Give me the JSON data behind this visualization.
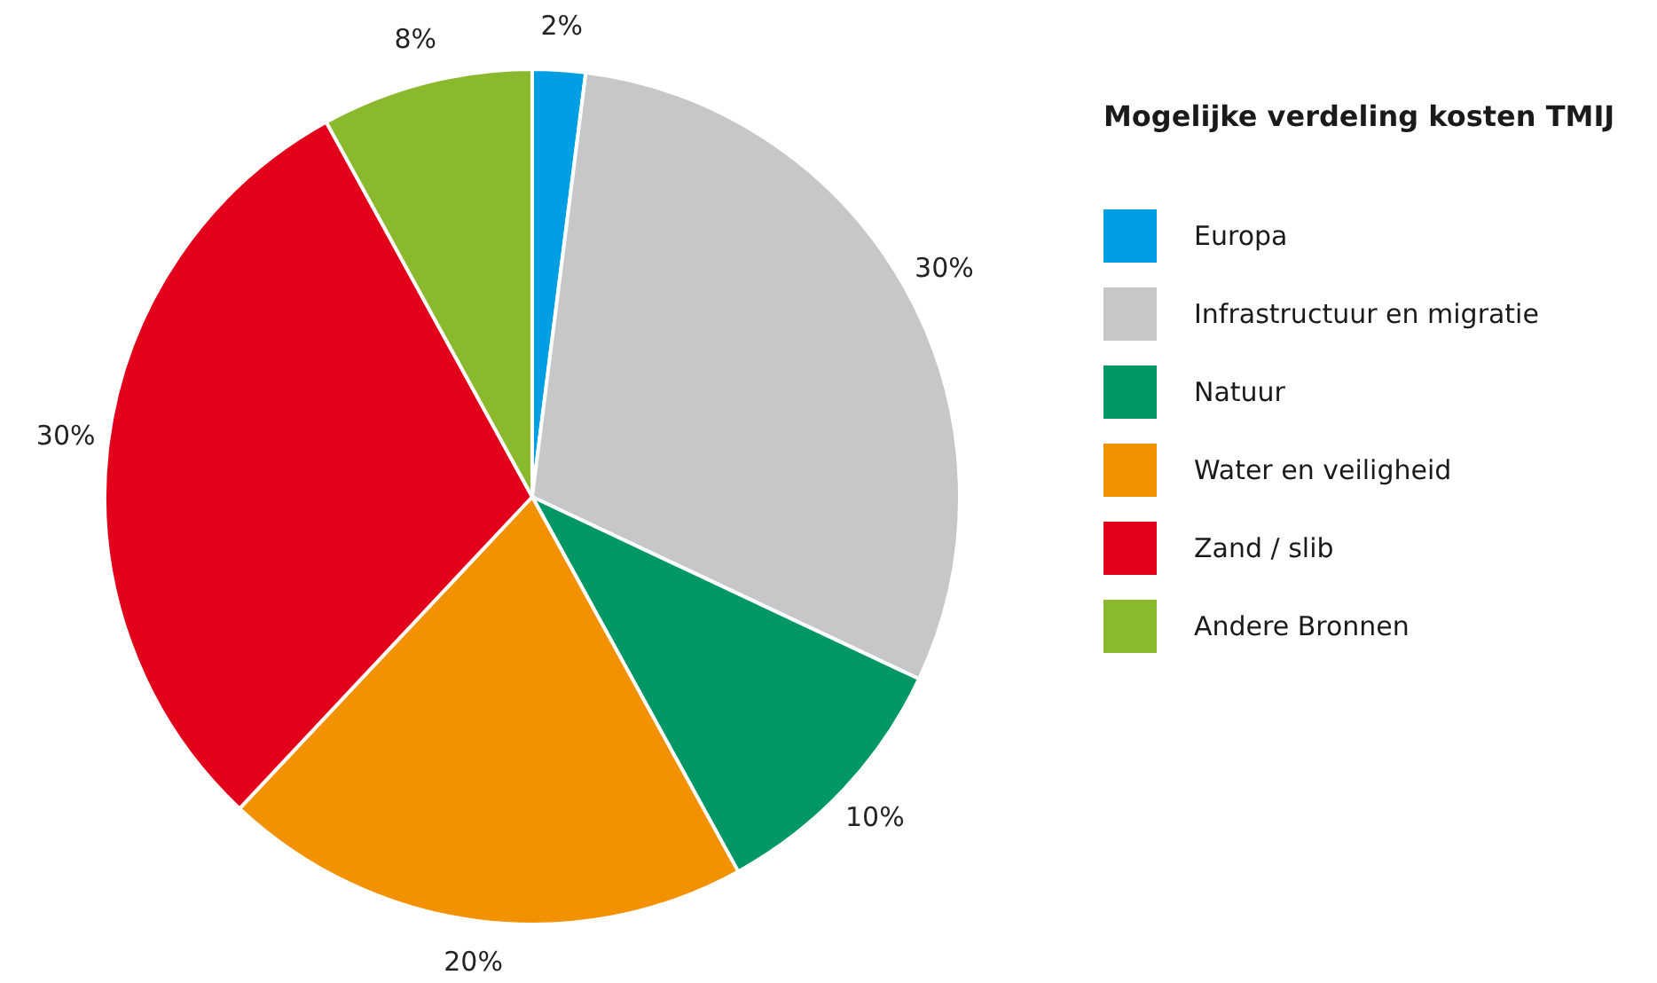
{
  "chart_data": {
    "type": "pie",
    "legend_title": "Mogelijke verdeling kosten TMIJ",
    "legend": "right",
    "categories": [
      "Europa",
      "Infrastructuur en migratie",
      "Natuur",
      "Water en veiligheid",
      "Zand / slib",
      "Andere Bronnen"
    ],
    "values": [
      2,
      30,
      10,
      20,
      30,
      8
    ],
    "colors": [
      "#009fe3",
      "#c6c7c8",
      "#009767",
      "#f39200",
      "#e2001a",
      "#8ab92d"
    ],
    "value_labels": [
      "2%",
      "30%",
      "10%",
      "20%",
      "30%",
      "8%"
    ]
  }
}
